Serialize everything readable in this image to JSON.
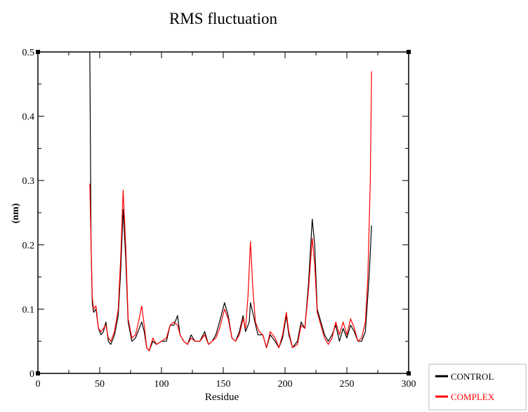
{
  "chart_data": {
    "type": "line",
    "title": "RMS fluctuation",
    "xlabel": "Residue",
    "ylabel": "(nm)",
    "xlim": [
      0,
      300
    ],
    "ylim": [
      0,
      0.5
    ],
    "xticks": [
      0,
      50,
      100,
      150,
      200,
      250,
      300
    ],
    "yticks": [
      0,
      0.1,
      0.2,
      0.3,
      0.4,
      0.5
    ],
    "grid": false,
    "legend_position": "bottom-right outside",
    "series": [
      {
        "name": "CONTROL",
        "color": "#000000",
        "points": [
          [
            42,
            0.5
          ],
          [
            43,
            0.2
          ],
          [
            44,
            0.11
          ],
          [
            45,
            0.095
          ],
          [
            47,
            0.1
          ],
          [
            49,
            0.07
          ],
          [
            51,
            0.06
          ],
          [
            53,
            0.065
          ],
          [
            55,
            0.08
          ],
          [
            57,
            0.05
          ],
          [
            59,
            0.045
          ],
          [
            62,
            0.06
          ],
          [
            65,
            0.09
          ],
          [
            67,
            0.16
          ],
          [
            69,
            0.255
          ],
          [
            71,
            0.18
          ],
          [
            73,
            0.08
          ],
          [
            76,
            0.05
          ],
          [
            79,
            0.055
          ],
          [
            82,
            0.07
          ],
          [
            84,
            0.08
          ],
          [
            86,
            0.065
          ],
          [
            88,
            0.04
          ],
          [
            90,
            0.035
          ],
          [
            93,
            0.05
          ],
          [
            96,
            0.045
          ],
          [
            100,
            0.05
          ],
          [
            104,
            0.05
          ],
          [
            107,
            0.075
          ],
          [
            110,
            0.075
          ],
          [
            113,
            0.09
          ],
          [
            115,
            0.06
          ],
          [
            118,
            0.05
          ],
          [
            121,
            0.045
          ],
          [
            124,
            0.06
          ],
          [
            127,
            0.05
          ],
          [
            131,
            0.05
          ],
          [
            135,
            0.065
          ],
          [
            138,
            0.045
          ],
          [
            141,
            0.05
          ],
          [
            144,
            0.06
          ],
          [
            147,
            0.08
          ],
          [
            151,
            0.11
          ],
          [
            154,
            0.09
          ],
          [
            157,
            0.055
          ],
          [
            160,
            0.05
          ],
          [
            163,
            0.065
          ],
          [
            166,
            0.09
          ],
          [
            168,
            0.065
          ],
          [
            171,
            0.08
          ],
          [
            172,
            0.11
          ],
          [
            175,
            0.085
          ],
          [
            178,
            0.06
          ],
          [
            182,
            0.06
          ],
          [
            185,
            0.04
          ],
          [
            188,
            0.06
          ],
          [
            192,
            0.05
          ],
          [
            195,
            0.04
          ],
          [
            198,
            0.055
          ],
          [
            201,
            0.09
          ],
          [
            203,
            0.06
          ],
          [
            206,
            0.04
          ],
          [
            210,
            0.05
          ],
          [
            213,
            0.08
          ],
          [
            216,
            0.07
          ],
          [
            219,
            0.14
          ],
          [
            222,
            0.24
          ],
          [
            224,
            0.2
          ],
          [
            226,
            0.1
          ],
          [
            229,
            0.08
          ],
          [
            232,
            0.06
          ],
          [
            235,
            0.05
          ],
          [
            238,
            0.06
          ],
          [
            241,
            0.075
          ],
          [
            244,
            0.05
          ],
          [
            247,
            0.07
          ],
          [
            250,
            0.055
          ],
          [
            253,
            0.075
          ],
          [
            256,
            0.065
          ],
          [
            259,
            0.05
          ],
          [
            262,
            0.05
          ],
          [
            265,
            0.065
          ],
          [
            268,
            0.15
          ],
          [
            270,
            0.23
          ]
        ]
      },
      {
        "name": "COMPLEX",
        "color": "#ff0000",
        "points": [
          [
            42,
            0.295
          ],
          [
            43,
            0.2
          ],
          [
            44,
            0.12
          ],
          [
            45,
            0.1
          ],
          [
            47,
            0.105
          ],
          [
            49,
            0.07
          ],
          [
            51,
            0.065
          ],
          [
            53,
            0.07
          ],
          [
            55,
            0.075
          ],
          [
            57,
            0.055
          ],
          [
            59,
            0.05
          ],
          [
            62,
            0.065
          ],
          [
            65,
            0.1
          ],
          [
            67,
            0.18
          ],
          [
            69,
            0.285
          ],
          [
            71,
            0.2
          ],
          [
            73,
            0.085
          ],
          [
            76,
            0.055
          ],
          [
            79,
            0.06
          ],
          [
            82,
            0.085
          ],
          [
            84,
            0.105
          ],
          [
            86,
            0.075
          ],
          [
            88,
            0.04
          ],
          [
            90,
            0.035
          ],
          [
            93,
            0.055
          ],
          [
            96,
            0.045
          ],
          [
            100,
            0.05
          ],
          [
            104,
            0.055
          ],
          [
            107,
            0.075
          ],
          [
            110,
            0.08
          ],
          [
            113,
            0.075
          ],
          [
            115,
            0.06
          ],
          [
            118,
            0.05
          ],
          [
            121,
            0.045
          ],
          [
            124,
            0.055
          ],
          [
            127,
            0.05
          ],
          [
            131,
            0.05
          ],
          [
            135,
            0.06
          ],
          [
            138,
            0.045
          ],
          [
            141,
            0.05
          ],
          [
            144,
            0.055
          ],
          [
            147,
            0.07
          ],
          [
            151,
            0.1
          ],
          [
            154,
            0.085
          ],
          [
            157,
            0.055
          ],
          [
            160,
            0.05
          ],
          [
            163,
            0.06
          ],
          [
            166,
            0.085
          ],
          [
            168,
            0.07
          ],
          [
            170,
            0.12
          ],
          [
            172,
            0.205
          ],
          [
            174,
            0.13
          ],
          [
            176,
            0.08
          ],
          [
            179,
            0.065
          ],
          [
            182,
            0.06
          ],
          [
            185,
            0.04
          ],
          [
            188,
            0.065
          ],
          [
            192,
            0.055
          ],
          [
            195,
            0.04
          ],
          [
            198,
            0.06
          ],
          [
            201,
            0.095
          ],
          [
            203,
            0.065
          ],
          [
            206,
            0.04
          ],
          [
            210,
            0.045
          ],
          [
            213,
            0.075
          ],
          [
            216,
            0.07
          ],
          [
            219,
            0.13
          ],
          [
            222,
            0.21
          ],
          [
            224,
            0.17
          ],
          [
            226,
            0.095
          ],
          [
            229,
            0.075
          ],
          [
            232,
            0.055
          ],
          [
            235,
            0.045
          ],
          [
            238,
            0.055
          ],
          [
            241,
            0.08
          ],
          [
            244,
            0.06
          ],
          [
            247,
            0.08
          ],
          [
            250,
            0.06
          ],
          [
            253,
            0.085
          ],
          [
            256,
            0.07
          ],
          [
            259,
            0.05
          ],
          [
            262,
            0.055
          ],
          [
            265,
            0.08
          ],
          [
            267,
            0.15
          ],
          [
            269,
            0.3
          ],
          [
            270,
            0.47
          ]
        ]
      }
    ]
  }
}
